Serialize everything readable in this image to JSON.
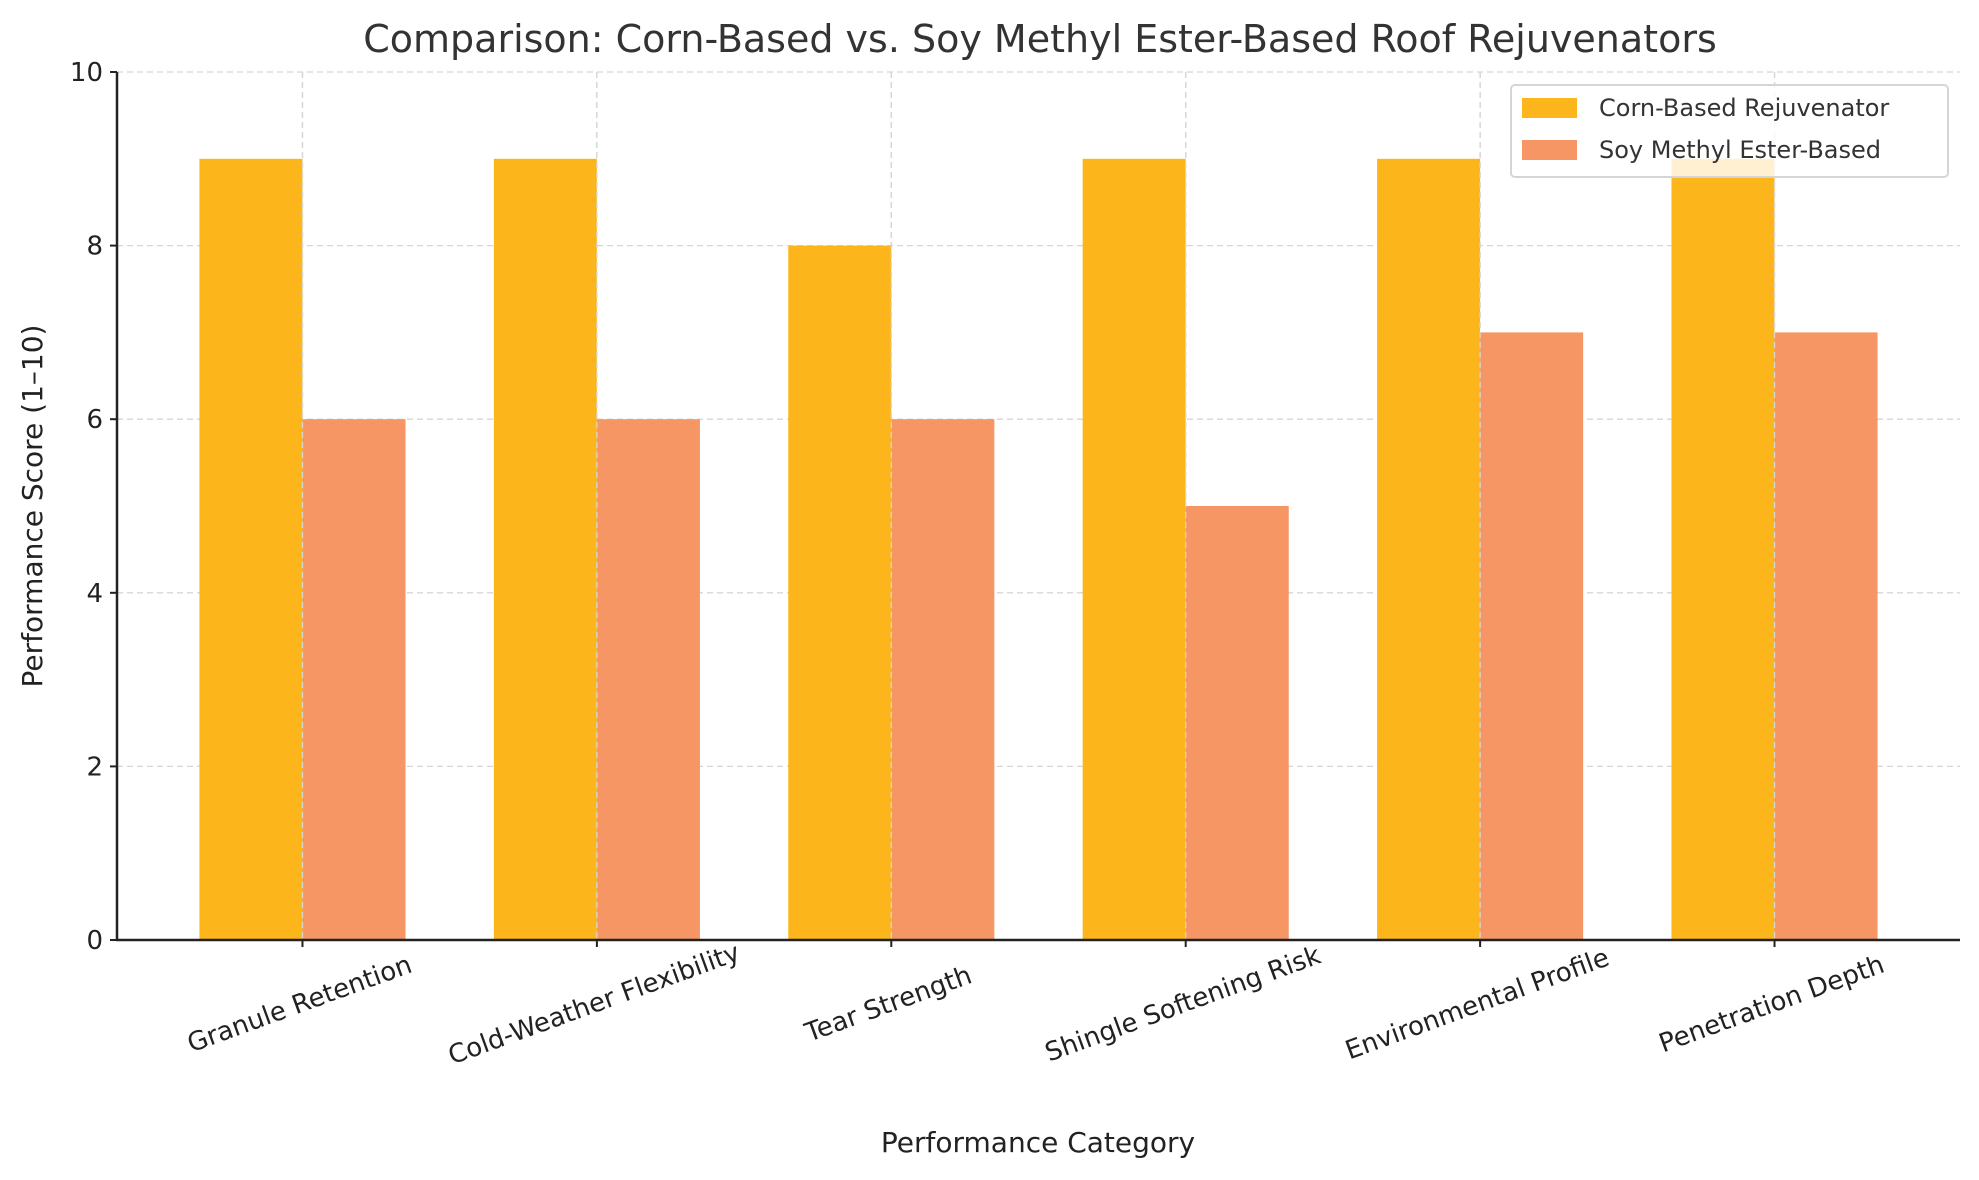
{
  "chart_data": {
    "type": "bar",
    "title": "Comparison: Corn-Based vs. Soy Methyl Ester-Based Roof Rejuvenators",
    "xlabel": "Performance Category",
    "ylabel": "Performance Score (1–10)",
    "categories": [
      "Granule Retention",
      "Cold-Weather Flexibility",
      "Tear Strength",
      "Shingle Softening Risk",
      "Environmental Profile",
      "Penetration Depth"
    ],
    "series": [
      {
        "name": "Corn-Based Rejuvenator",
        "values": [
          9,
          9,
          8,
          9,
          9,
          9
        ],
        "color": "#FDB51C"
      },
      {
        "name": "Soy Methyl Ester-Based",
        "values": [
          6,
          6,
          6,
          5,
          7,
          7
        ],
        "color": "#F59664"
      }
    ],
    "ylim": [
      0,
      10
    ],
    "yticks": [
      0,
      2,
      4,
      6,
      8,
      10
    ],
    "grid": true,
    "legend_position": "top-right"
  }
}
